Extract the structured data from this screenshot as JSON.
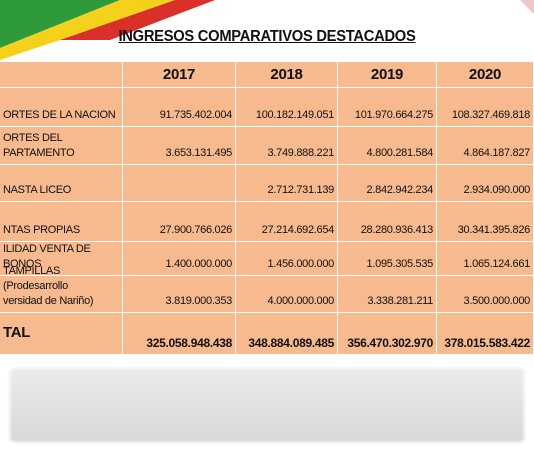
{
  "title": "INGRESOS COMPARATIVOS DESTACADOS",
  "table": {
    "header": [
      "2017",
      "2018",
      "2019",
      "2020"
    ],
    "rows": [
      {
        "label": "ORTES DE LA NACION",
        "values": [
          "91.735.402.004",
          "100.182.149.051",
          "101.970.664.275",
          "108.327.469.818"
        ]
      },
      {
        "label": "ORTES DEL\nPARTAMENTO",
        "values": [
          "3.653.131.495",
          "3.749.888.221",
          "4.800.281.584",
          "4.864.187.827"
        ]
      },
      {
        "label": "NASTA LICEO",
        "values": [
          null,
          "2.712.731.139",
          "2.842.942.234",
          "2.934.090.000"
        ]
      },
      {
        "label": "NTAS PROPIAS",
        "values": [
          "27.900.766.026",
          "27.214.692.654",
          "28.280.936.413",
          "30.341.395.826"
        ]
      },
      {
        "label": "ILIDAD VENTA DE BONOS",
        "values": [
          "1.400.000.000",
          "1.456.000.000",
          "1.095.305.535",
          "1.065.124.661"
        ]
      },
      {
        "label": "TAMPILLAS (Prodesarrollo\nversidad de Nariño)",
        "values": [
          "3.819.000.353",
          "4.000.000.000",
          "3.338.281.211",
          "3.500.000.000"
        ]
      }
    ],
    "total": {
      "label": "TAL",
      "values": [
        "325.058.948.438",
        "348.884.089.485",
        "356.470.302.970",
        "378.015.583.422"
      ]
    }
  }
}
